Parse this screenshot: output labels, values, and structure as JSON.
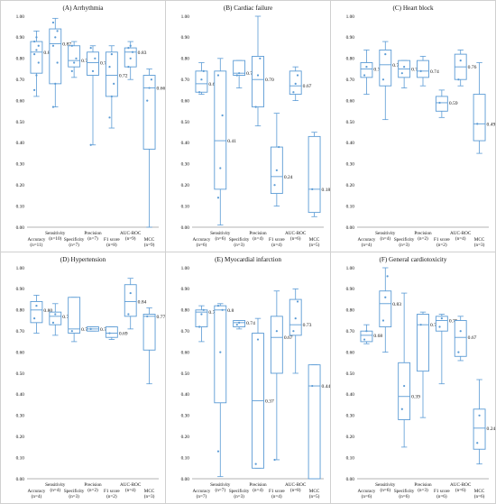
{
  "chart_data": [
    {
      "type": "boxplot",
      "title": "(A) Arrhythmia",
      "ylim": [
        0,
        1
      ],
      "yticks": [
        "0.00",
        "0.10",
        "0.20",
        "0.30",
        "0.40",
        "0.50",
        "0.60",
        "0.70",
        "0.80",
        "0.90",
        "1.00"
      ],
      "categories": [
        {
          "name": "Accuracy",
          "n": "(n=11)"
        },
        {
          "name": "Sensitivity",
          "n": "(n=10)"
        },
        {
          "name": "Specificity",
          "n": "(n=7)"
        },
        {
          "name": "Precision",
          "n": "(n=7)"
        },
        {
          "name": "F1 score",
          "n": "(n=8)"
        },
        {
          "name": "AUC-ROC",
          "n": "(n=9)"
        },
        {
          "name": "MCC",
          "n": "(n=9)"
        }
      ],
      "boxes": [
        {
          "min": 0.62,
          "q1": 0.73,
          "median": 0.83,
          "q3": 0.88,
          "max": 0.93,
          "median_label": "0.83",
          "points": [
            0.65,
            0.72,
            0.78,
            0.82,
            0.84,
            0.86,
            0.88,
            0.9
          ]
        },
        {
          "min": 0.57,
          "q1": 0.68,
          "median": 0.87,
          "q3": 0.94,
          "max": 0.99,
          "median_label": "0.87",
          "points": [
            0.57,
            0.68,
            0.78,
            0.86,
            0.9,
            0.93,
            0.97
          ]
        },
        {
          "min": 0.71,
          "q1": 0.76,
          "median": 0.79,
          "q3": 0.86,
          "max": 0.88,
          "median_label": "0.79",
          "points": [
            0.74,
            0.78,
            0.8,
            0.86
          ]
        },
        {
          "min": 0.39,
          "q1": 0.72,
          "median": 0.78,
          "q3": 0.83,
          "max": 0.86,
          "median_label": "0.78",
          "points": [
            0.39,
            0.74,
            0.8,
            0.85
          ]
        },
        {
          "min": 0.47,
          "q1": 0.62,
          "median": 0.72,
          "q3": 0.83,
          "max": 0.86,
          "median_label": "0.72",
          "points": [
            0.52,
            0.62,
            0.68,
            0.76,
            0.82
          ]
        },
        {
          "min": 0.7,
          "q1": 0.76,
          "median": 0.83,
          "q3": 0.85,
          "max": 0.88,
          "median_label": "0.83",
          "points": [
            0.76,
            0.8,
            0.83,
            0.85,
            0.86
          ]
        },
        {
          "min": 0.0,
          "q1": 0.37,
          "median": 0.66,
          "q3": 0.72,
          "max": 0.75,
          "median_label": "0.66",
          "points": [
            0.6,
            0.66,
            0.7
          ]
        }
      ]
    },
    {
      "type": "boxplot",
      "title": "(B) Cardiac failure",
      "ylim": [
        0,
        1
      ],
      "yticks": [
        "0.00",
        "0.10",
        "0.20",
        "0.30",
        "0.40",
        "0.50",
        "0.60",
        "0.70",
        "0.80",
        "0.90",
        "1.00"
      ],
      "categories": [
        {
          "name": "Accuracy",
          "n": "(n=6)"
        },
        {
          "name": "Sensitivity",
          "n": "(n=6)"
        },
        {
          "name": "Specificity",
          "n": "(n=3)"
        },
        {
          "name": "Precision",
          "n": "(n=4)"
        },
        {
          "name": "F1 score",
          "n": "(n=4)"
        },
        {
          "name": "AUC-ROC",
          "n": "(n=6)"
        },
        {
          "name": "MCC",
          "n": "(n=5)"
        }
      ],
      "boxes": [
        {
          "min": 0.63,
          "q1": 0.64,
          "median": 0.68,
          "q3": 0.74,
          "max": 0.78,
          "median_label": "0.68",
          "points": [
            0.64,
            0.7,
            0.74
          ]
        },
        {
          "min": 0.01,
          "q1": 0.18,
          "median": 0.41,
          "q3": 0.74,
          "max": 0.8,
          "median_label": "0.41",
          "points": [
            0.14,
            0.28,
            0.53,
            0.72
          ]
        },
        {
          "min": 0.66,
          "q1": 0.72,
          "median": 0.73,
          "q3": 0.79,
          "max": 0.79,
          "median_label": "0.73",
          "points": [
            0.72,
            0.73
          ]
        },
        {
          "min": 0.48,
          "q1": 0.57,
          "median": 0.7,
          "q3": 0.81,
          "max": 1.0,
          "median_label": "0.70",
          "points": [
            0.57,
            0.72,
            0.8
          ]
        },
        {
          "min": 0.1,
          "q1": 0.16,
          "median": 0.24,
          "q3": 0.38,
          "max": 0.54,
          "median_label": "0.24",
          "points": [
            0.2,
            0.27,
            0.38
          ]
        },
        {
          "min": 0.6,
          "q1": 0.63,
          "median": 0.67,
          "q3": 0.74,
          "max": 0.76,
          "median_label": "0.67",
          "points": [
            0.64,
            0.68,
            0.72
          ]
        },
        {
          "min": 0.05,
          "q1": 0.07,
          "median": 0.18,
          "q3": 0.43,
          "max": 0.45,
          "median_label": "0.18",
          "points": [
            0.18
          ]
        }
      ]
    },
    {
      "type": "boxplot",
      "title": "(C) Heart block",
      "ylim": [
        0,
        1
      ],
      "yticks": [
        "0.00",
        "0.10",
        "0.20",
        "0.30",
        "0.40",
        "0.50",
        "0.60",
        "0.70",
        "0.80",
        "0.90",
        "1.00"
      ],
      "categories": [
        {
          "name": "Accuracy",
          "n": "(n=4)"
        },
        {
          "name": "Sensitivity",
          "n": "(n=4)"
        },
        {
          "name": "Specificity",
          "n": "(n=3)"
        },
        {
          "name": "Precision",
          "n": "(n=2)"
        },
        {
          "name": "F1 score",
          "n": "(n=2)"
        },
        {
          "name": "AUC-ROC",
          "n": "(n=4)"
        },
        {
          "name": "MCC",
          "n": "(n=3)"
        }
      ],
      "boxes": [
        {
          "min": 0.63,
          "q1": 0.71,
          "median": 0.75,
          "q3": 0.78,
          "max": 0.84,
          "median_label": "0.75",
          "points": [
            0.72,
            0.76
          ]
        },
        {
          "min": 0.51,
          "q1": 0.67,
          "median": 0.77,
          "q3": 0.84,
          "max": 0.88,
          "median_label": "0.77",
          "points": [
            0.7,
            0.82
          ]
        },
        {
          "min": 0.66,
          "q1": 0.71,
          "median": 0.75,
          "q3": 0.79,
          "max": 0.79,
          "median_label": "0.75",
          "points": [
            0.73,
            0.76
          ]
        },
        {
          "min": 0.67,
          "q1": 0.71,
          "median": 0.74,
          "q3": 0.79,
          "max": 0.81,
          "median_label": "0.74",
          "points": [
            0.74
          ]
        },
        {
          "min": 0.52,
          "q1": 0.55,
          "median": 0.59,
          "q3": 0.62,
          "max": 0.65,
          "median_label": "0.59",
          "points": [
            0.59
          ]
        },
        {
          "min": 0.67,
          "q1": 0.7,
          "median": 0.76,
          "q3": 0.82,
          "max": 0.84,
          "median_label": "0.76",
          "points": [
            0.7,
            0.79
          ]
        },
        {
          "min": 0.35,
          "q1": 0.41,
          "median": 0.49,
          "q3": 0.63,
          "max": 0.78,
          "median_label": "0.49",
          "points": [
            0.49
          ]
        }
      ]
    },
    {
      "type": "boxplot",
      "title": "(D) Hypertension",
      "ylim": [
        0,
        1
      ],
      "yticks": [
        "0.00",
        "0.10",
        "0.20",
        "0.30",
        "0.40",
        "0.50",
        "0.60",
        "0.70",
        "0.80",
        "0.90",
        "1.00"
      ],
      "categories": [
        {
          "name": "Accuracy",
          "n": "(n=4)"
        },
        {
          "name": "Sensitivity",
          "n": "(n=4)"
        },
        {
          "name": "Specificity",
          "n": "(n=3)"
        },
        {
          "name": "Precision",
          "n": "(n=2)"
        },
        {
          "name": "F1 score",
          "n": "(n=2)"
        },
        {
          "name": "AUC-ROC",
          "n": "(n=4)"
        },
        {
          "name": "MCC",
          "n": "(n=3)"
        }
      ],
      "boxes": [
        {
          "min": 0.69,
          "q1": 0.74,
          "median": 0.8,
          "q3": 0.84,
          "max": 0.87,
          "median_label": "0.80",
          "points": [
            0.76,
            0.82
          ]
        },
        {
          "min": 0.68,
          "q1": 0.73,
          "median": 0.77,
          "q3": 0.79,
          "max": 0.83,
          "median_label": "0.77",
          "points": [
            0.74,
            0.78
          ]
        },
        {
          "min": 0.65,
          "q1": 0.69,
          "median": 0.71,
          "q3": 0.86,
          "max": 0.86,
          "median_label": "0.71",
          "points": [
            0.7
          ]
        },
        {
          "min": 0.7,
          "q1": 0.7,
          "median": 0.71,
          "q3": 0.72,
          "max": 0.72,
          "median_label": "0.71",
          "points": [
            0.71
          ]
        },
        {
          "min": 0.66,
          "q1": 0.67,
          "median": 0.69,
          "q3": 0.72,
          "max": 0.72,
          "median_label": "0.69",
          "points": [
            0.69
          ]
        },
        {
          "min": 0.71,
          "q1": 0.77,
          "median": 0.84,
          "q3": 0.92,
          "max": 0.95,
          "median_label": "0.84",
          "points": [
            0.78,
            0.88
          ]
        },
        {
          "min": 0.45,
          "q1": 0.61,
          "median": 0.77,
          "q3": 0.78,
          "max": 0.81,
          "median_label": "0.77",
          "points": [
            0.77
          ]
        }
      ]
    },
    {
      "type": "boxplot",
      "title": "(E) Myocardial infarction",
      "ylim": [
        0,
        1
      ],
      "yticks": [
        "0.00",
        "0.10",
        "0.20",
        "0.30",
        "0.40",
        "0.50",
        "0.60",
        "0.70",
        "0.80",
        "0.90",
        "1.00"
      ],
      "categories": [
        {
          "name": "Accuracy",
          "n": "(n=7)"
        },
        {
          "name": "Sensitivity",
          "n": "(n=7)"
        },
        {
          "name": "Specificity",
          "n": "(n=3)"
        },
        {
          "name": "Precision",
          "n": "(n=4)"
        },
        {
          "name": "F1 score",
          "n": "(n=4)"
        },
        {
          "name": "AUC-ROC",
          "n": "(n=8)"
        },
        {
          "name": "MCC",
          "n": "(n=5)"
        }
      ],
      "boxes": [
        {
          "min": 0.65,
          "q1": 0.72,
          "median": 0.79,
          "q3": 0.8,
          "max": 0.82,
          "median_label": "0.79",
          "points": [
            0.72,
            0.78,
            0.8
          ]
        },
        {
          "min": 0.01,
          "q1": 0.36,
          "median": 0.8,
          "q3": 0.82,
          "max": 0.83,
          "median_label": "0.8",
          "points": [
            0.13,
            0.6,
            0.8,
            0.82
          ]
        },
        {
          "min": 0.71,
          "q1": 0.72,
          "median": 0.74,
          "q3": 0.75,
          "max": 0.75,
          "median_label": "0.74",
          "points": [
            0.73,
            0.74
          ]
        },
        {
          "min": 0.05,
          "q1": 0.05,
          "median": 0.37,
          "q3": 0.69,
          "max": 0.76,
          "median_label": "0.37",
          "points": [
            0.07,
            0.66
          ]
        },
        {
          "min": 0.09,
          "q1": 0.5,
          "median": 0.67,
          "q3": 0.77,
          "max": 0.89,
          "median_label": "0.67",
          "points": [
            0.09,
            0.7
          ]
        },
        {
          "min": 0.5,
          "q1": 0.68,
          "median": 0.73,
          "q3": 0.85,
          "max": 0.9,
          "median_label": "0.73",
          "points": [
            0.7,
            0.76,
            0.84
          ]
        },
        {
          "min": 0.0,
          "q1": 0.0,
          "median": 0.44,
          "q3": 0.54,
          "max": 0.54,
          "median_label": "0.44",
          "points": [
            0.44
          ]
        }
      ]
    },
    {
      "type": "boxplot",
      "title": "(F) General cardiotoxicity",
      "ylim": [
        0,
        1
      ],
      "yticks": [
        "0.00",
        "0.10",
        "0.20",
        "0.30",
        "0.40",
        "0.50",
        "0.60",
        "0.70",
        "0.80",
        "0.90",
        "1.00"
      ],
      "categories": [
        {
          "name": "Accuracy",
          "n": "(n=6)"
        },
        {
          "name": "Sensitivity",
          "n": "(n=6)"
        },
        {
          "name": "Specificity",
          "n": "(n=6)"
        },
        {
          "name": "Precision",
          "n": "(n=3)"
        },
        {
          "name": "F1 score",
          "n": "(n=6)"
        },
        {
          "name": "AUC-ROC",
          "n": "(n=6)"
        },
        {
          "name": "MCC",
          "n": "(n=6)"
        }
      ],
      "boxes": [
        {
          "min": 0.64,
          "q1": 0.65,
          "median": 0.68,
          "q3": 0.7,
          "max": 0.73,
          "median_label": "0.68",
          "points": [
            0.66,
            0.7
          ]
        },
        {
          "min": 0.6,
          "q1": 0.72,
          "median": 0.83,
          "q3": 0.89,
          "max": 1.0,
          "median_label": "0.83",
          "points": [
            0.75,
            0.86,
            0.96
          ]
        },
        {
          "min": 0.15,
          "q1": 0.28,
          "median": 0.39,
          "q3": 0.55,
          "max": 0.88,
          "median_label": "0.39",
          "points": [
            0.33,
            0.44
          ]
        },
        {
          "min": 0.29,
          "q1": 0.51,
          "median": 0.73,
          "q3": 0.78,
          "max": 0.79,
          "median_label": "0.73",
          "points": [
            0.73
          ]
        },
        {
          "min": 0.45,
          "q1": 0.7,
          "median": 0.75,
          "q3": 0.77,
          "max": 0.78,
          "median_label": "0.75",
          "points": [
            0.72,
            0.76
          ]
        },
        {
          "min": 0.56,
          "q1": 0.58,
          "median": 0.67,
          "q3": 0.75,
          "max": 0.77,
          "median_label": "0.67",
          "points": [
            0.6,
            0.7
          ]
        },
        {
          "min": 0.07,
          "q1": 0.14,
          "median": 0.24,
          "q3": 0.33,
          "max": 0.47,
          "median_label": "0.24",
          "points": [
            0.17,
            0.3
          ]
        }
      ]
    }
  ]
}
